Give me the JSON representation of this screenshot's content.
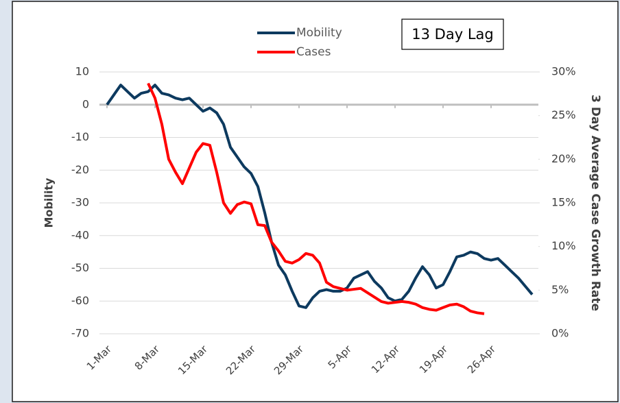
{
  "chart_data": {
    "type": "line",
    "annotation": "13 Day Lag",
    "ylabel": "Mobility",
    "y2label": "3 Day Average Case Growth Rate",
    "categories": [
      "1-Mar",
      null,
      null,
      null,
      null,
      null,
      null,
      "8-Mar",
      null,
      null,
      null,
      null,
      null,
      null,
      "15-Mar",
      null,
      null,
      null,
      null,
      null,
      null,
      "22-Mar",
      null,
      null,
      null,
      null,
      null,
      null,
      "29-Mar",
      null,
      null,
      null,
      null,
      null,
      null,
      "5-Apr",
      null,
      null,
      null,
      null,
      null,
      null,
      "12-Apr",
      null,
      null,
      null,
      null,
      null,
      null,
      "19-Apr",
      null,
      null,
      null,
      null,
      null,
      null,
      "26-Apr",
      null,
      null,
      null,
      null,
      null,
      null
    ],
    "series": [
      {
        "name": "Mobility",
        "color": "#0d3a5f",
        "axis": "y",
        "values": [
          0,
          3,
          6,
          4,
          2,
          3.5,
          4,
          6,
          3.5,
          3,
          2,
          1.5,
          2,
          0,
          -2,
          -1,
          -2.5,
          -6,
          -13,
          -16,
          -19,
          -21,
          -25,
          -33,
          -42,
          -49,
          -52,
          -57,
          -61.5,
          -62,
          -59,
          -57,
          -56.5,
          -57,
          -57,
          -56,
          -53,
          -52,
          -51,
          -54,
          -56,
          -59,
          -60,
          -59.5,
          -57,
          -53,
          -49.5,
          -52,
          -56,
          -55,
          -51,
          -46.5,
          -46,
          -45,
          -45.5,
          -47,
          -47.5,
          -47,
          -49,
          -51,
          -53,
          -55.5,
          -58
        ]
      },
      {
        "name": "Cases",
        "color": "#ff0000",
        "axis": "y2",
        "values": [
          null,
          null,
          null,
          null,
          null,
          null,
          28.7,
          27,
          24,
          20,
          18.5,
          17.2,
          19,
          20.8,
          21.8,
          21.6,
          18.5,
          15,
          13.8,
          14.8,
          15.1,
          14.9,
          12.5,
          12.4,
          10.5,
          9.5,
          8.3,
          8.1,
          8.5,
          9.2,
          9,
          8.1,
          5.9,
          5.4,
          5.2,
          5,
          5.1,
          5.2,
          4.7,
          4.2,
          3.7,
          3.5,
          3.6,
          3.7,
          3.6,
          3.4,
          3,
          2.8,
          2.7,
          3,
          3.3,
          3.4,
          3.1,
          2.6,
          2.4,
          2.3,
          null,
          null,
          null,
          null,
          null,
          null,
          null
        ]
      }
    ],
    "ylim": [
      -70,
      10
    ],
    "yticks": [
      10,
      0,
      -10,
      -20,
      -30,
      -40,
      -50,
      -60,
      -70
    ],
    "y2lim": [
      0,
      30
    ],
    "y2ticks": [
      {
        "value": 30,
        "label": "30%"
      },
      {
        "value": 25,
        "label": "25%"
      },
      {
        "value": 20,
        "label": "20%"
      },
      {
        "value": 15,
        "label": "15%"
      },
      {
        "value": 10,
        "label": "10%"
      },
      {
        "value": 5,
        "label": "5%"
      },
      {
        "value": 0,
        "label": "0%"
      }
    ],
    "grid": true
  }
}
